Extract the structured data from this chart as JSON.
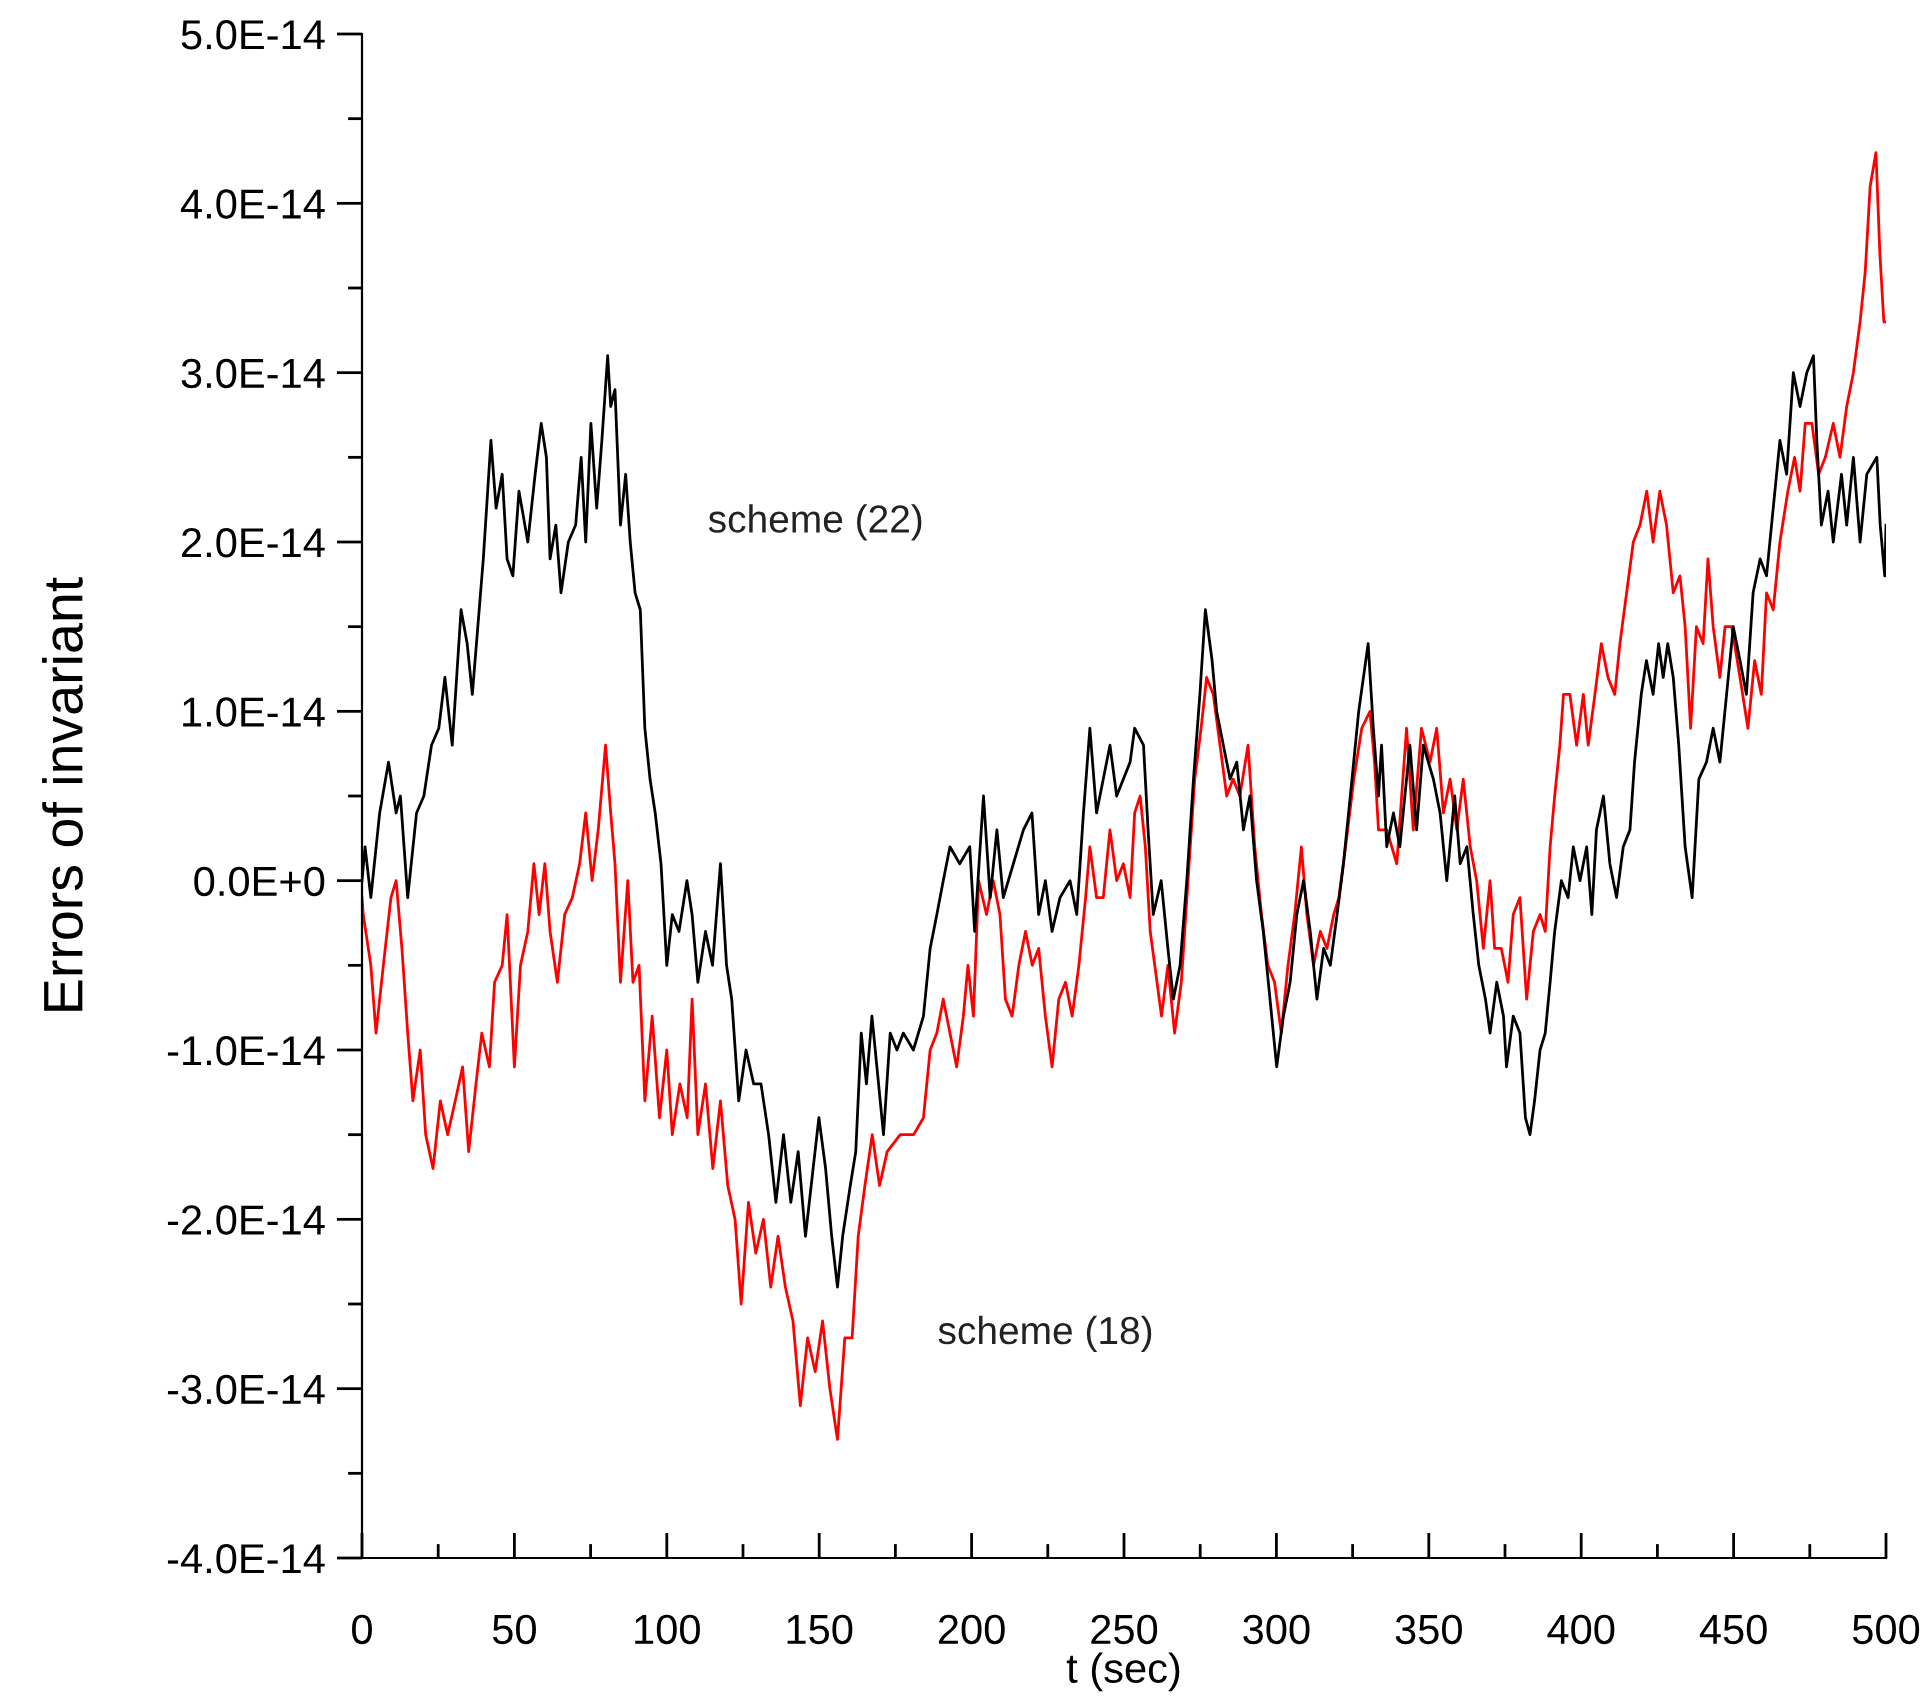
{
  "chart_data": {
    "type": "line",
    "xlabel": "t (sec)",
    "ylabel": "Errors of invariant",
    "xlim": [
      0,
      500
    ],
    "ylim": [
      -4e-14,
      5e-14
    ],
    "xticks": [
      0,
      {
        "value": 25,
        "label": null
      },
      50,
      {
        "value": 75,
        "label": null
      },
      100,
      {
        "value": 125,
        "label": null
      },
      150,
      {
        "value": 175,
        "label": null
      },
      200,
      {
        "value": 225,
        "label": null
      },
      250,
      {
        "value": 275,
        "label": null
      },
      300,
      {
        "value": 325,
        "label": null
      },
      350,
      {
        "value": 375,
        "label": null
      },
      400,
      {
        "value": 425,
        "label": null
      },
      450,
      {
        "value": 475,
        "label": null
      },
      500
    ],
    "yticks": [
      {
        "value": -4e-14,
        "label": "-4.0E-14"
      },
      {
        "value": -3.5e-14,
        "label": null
      },
      {
        "value": -3e-14,
        "label": "-3.0E-14"
      },
      {
        "value": -2.5e-14,
        "label": null
      },
      {
        "value": -2e-14,
        "label": "-2.0E-14"
      },
      {
        "value": -1.5e-14,
        "label": null
      },
      {
        "value": -1e-14,
        "label": "-1.0E-14"
      },
      {
        "value": -5e-15,
        "label": null
      },
      {
        "value": 0,
        "label": "0.0E+0"
      },
      {
        "value": 5e-15,
        "label": null
      },
      {
        "value": 1e-14,
        "label": "1.0E-14"
      },
      {
        "value": 1.5e-14,
        "label": null
      },
      {
        "value": 2e-14,
        "label": "2.0E-14"
      },
      {
        "value": 2.5e-14,
        "label": null
      },
      {
        "value": 3e-14,
        "label": "3.0E-14"
      },
      {
        "value": 3.5e-14,
        "label": null
      },
      {
        "value": 4e-14,
        "label": "4.0E-14"
      },
      {
        "value": 4.5e-14,
        "label": null
      },
      {
        "value": 5e-14,
        "label": "5.0E-14"
      }
    ],
    "series": [
      {
        "name": "scheme (18)",
        "color": "#ff0000",
        "x": [
          0,
          0.4,
          2.9,
          4.6,
          7,
          9.5,
          11.2,
          13.1,
          15,
          16.7,
          19.1,
          20.9,
          23.3,
          25.7,
          28.1,
          30.6,
          33,
          35,
          37.4,
          39.3,
          41.8,
          43.5,
          46,
          47.6,
          50,
          52,
          54.4,
          56.4,
          58.1,
          60,
          61.7,
          64.1,
          66.5,
          69,
          71.4,
          73.4,
          75.5,
          77.5,
          79.9,
          81.6,
          83,
          84.8,
          87.2,
          88.9,
          90.9,
          92.8,
          95.2,
          97.6,
          100,
          101.8,
          104.3,
          106.7,
          108.3,
          110.2,
          112.7,
          115.1,
          117.6,
          120,
          122.4,
          124.4,
          126.8,
          129.2,
          131.7,
          134.1,
          136.5,
          138.9,
          141.4,
          143.8,
          146.2,
          148.7,
          151.1,
          153.5,
          156,
          158.4,
          160.8,
          162.8,
          165,
          167.4,
          169.8,
          172.3,
          176.6,
          181,
          184.2,
          186.4,
          188.6,
          190.7,
          192.9,
          195.1,
          197.3,
          198.8,
          200.6,
          202.3,
          204.9,
          207.1,
          209.3,
          211.1,
          213.3,
          215.5,
          217.7,
          219.9,
          222,
          224.2,
          226.4,
          228.6,
          230.8,
          233,
          235.2,
          237.4,
          238.8,
          241,
          243.2,
          245.4,
          247.6,
          249.8,
          252,
          253.5,
          255.3,
          257,
          258.6,
          260.1,
          262.3,
          264.4,
          266.6,
          268.8,
          271,
          273.2,
          275.3,
          277.1,
          279.3,
          281.5,
          283.7,
          285.8,
          288,
          290.7,
          292.9,
          295.1,
          297.2,
          299.4,
          301.6,
          303.8,
          306,
          308.2,
          310,
          312.2,
          314.4,
          316.6,
          318.8,
          320.5,
          322.7,
          325.4,
          328,
          330.7,
          332.2,
          333.5,
          336.2,
          339.5,
          342.7,
          344.9,
          347.6,
          350.4,
          352.6,
          354.8,
          357,
          359.2,
          361.3,
          363.6,
          365.7,
          367.9,
          370.1,
          371.6,
          373.8,
          376,
          377.7,
          379.9,
          382.1,
          384.3,
          386.5,
          388.2,
          389.8,
          391.3,
          393,
          394.2,
          396.3,
          398.5,
          400.7,
          402.3,
          404.5,
          406.6,
          408.8,
          411,
          412.7,
          414.9,
          417.1,
          419.3,
          421.5,
          423.6,
          425.8,
          428,
          430.2,
          432.4,
          434.1,
          435.9,
          437.8,
          440,
          441.6,
          443.3,
          445.5,
          447.2,
          449.4,
          452.1,
          454.7,
          456.9,
          459.1,
          460.8,
          463,
          465.2,
          467.8,
          470,
          471.8,
          473.5,
          475.7,
          477.9,
          480.1,
          482.7,
          484.9,
          487.1,
          489.3,
          491.5,
          493.2,
          494.8,
          496.7,
          498,
          499.3,
          500
        ],
        "values": [
          -1e-15,
          -2e-15,
          -5e-15,
          -9e-15,
          -5e-15,
          -1e-15,
          0,
          -4e-15,
          -9e-15,
          -1.3e-14,
          -1e-14,
          -1.5e-14,
          -1.7e-14,
          -1.3e-14,
          -1.5e-14,
          -1.3e-14,
          -1.1e-14,
          -1.6e-14,
          -1.2e-14,
          -9e-15,
          -1.1e-14,
          -6e-15,
          -5e-15,
          -2e-15,
          -1.1e-14,
          -5e-15,
          -3e-15,
          1e-15,
          -2e-15,
          1e-15,
          -3e-15,
          -6e-15,
          -2e-15,
          -1e-15,
          1e-15,
          4e-15,
          0,
          3e-15,
          8e-15,
          4e-15,
          1e-15,
          -6e-15,
          0,
          -6e-15,
          -5e-15,
          -1.3e-14,
          -8e-15,
          -1.4e-14,
          -1e-14,
          -1.5e-14,
          -1.2e-14,
          -1.4e-14,
          -7e-15,
          -1.5e-14,
          -1.2e-14,
          -1.7e-14,
          -1.3e-14,
          -1.8e-14,
          -2e-14,
          -2.5e-14,
          -1.9e-14,
          -2.2e-14,
          -2e-14,
          -2.4e-14,
          -2.1e-14,
          -2.4e-14,
          -2.6e-14,
          -3.1e-14,
          -2.7e-14,
          -2.9e-14,
          -2.6e-14,
          -3e-14,
          -3.3e-14,
          -2.7e-14,
          -2.7e-14,
          -2.1e-14,
          -1.8e-14,
          -1.5e-14,
          -1.8e-14,
          -1.6e-14,
          -1.5e-14,
          -1.5e-14,
          -1.4e-14,
          -1e-14,
          -9e-15,
          -7e-15,
          -9e-15,
          -1.1e-14,
          -8e-15,
          -5e-15,
          -8e-15,
          0,
          -2e-15,
          0,
          -2e-15,
          -7e-15,
          -8e-15,
          -5e-15,
          -3e-15,
          -5e-15,
          -4e-15,
          -8e-15,
          -1.1e-14,
          -7e-15,
          -6e-15,
          -8e-15,
          -5e-15,
          -1e-15,
          2e-15,
          -1e-15,
          -1e-15,
          3e-15,
          0,
          1e-15,
          -1e-15,
          4e-15,
          5e-15,
          2e-15,
          -3e-15,
          -5e-15,
          -8e-15,
          -5e-15,
          -9e-15,
          -6e-15,
          0,
          6e-15,
          9e-15,
          1.2e-14,
          1.1e-14,
          8e-15,
          5e-15,
          6e-15,
          5e-15,
          8e-15,
          2e-15,
          -2e-15,
          -5e-15,
          -6e-15,
          -9e-15,
          -5e-15,
          -2e-15,
          2e-15,
          -2e-15,
          -5e-15,
          -3e-15,
          -4e-15,
          -2e-15,
          -1e-15,
          2e-15,
          6e-15,
          9e-15,
          1e-14,
          7e-15,
          3e-15,
          3e-15,
          1e-15,
          9e-15,
          3e-15,
          9e-15,
          7e-15,
          9e-15,
          4e-15,
          6e-15,
          3e-15,
          6e-15,
          2e-15,
          0,
          -4e-15,
          0,
          -4e-15,
          -4e-15,
          -6e-15,
          -2e-15,
          -1e-15,
          -7e-15,
          -3e-15,
          -2e-15,
          -3e-15,
          2e-15,
          5e-15,
          8e-15,
          1.1e-14,
          1.1e-14,
          8e-15,
          1.1e-14,
          8e-15,
          1.1e-14,
          1.4e-14,
          1.2e-14,
          1.1e-14,
          1.4e-14,
          1.7e-14,
          2e-14,
          2.1e-14,
          2.3e-14,
          2e-14,
          2.3e-14,
          2.1e-14,
          1.7e-14,
          1.8e-14,
          1.5e-14,
          9e-15,
          1.5e-14,
          1.4e-14,
          1.9e-14,
          1.5e-14,
          1.2e-14,
          1.5e-14,
          1.5e-14,
          1.2e-14,
          9e-15,
          1.3e-14,
          1.1e-14,
          1.7e-14,
          1.6e-14,
          2e-14,
          2.3e-14,
          2.5e-14,
          2.3e-14,
          2.7e-14,
          2.7e-14,
          2.4e-14,
          2.5e-14,
          2.7e-14,
          2.5e-14,
          2.8e-14,
          3e-14,
          3.3e-14,
          3.6e-14,
          4.1e-14,
          4.3e-14,
          3.7e-14,
          3.3e-14,
          3.3e-14
        ]
      },
      {
        "name": "scheme (22)",
        "color": "#000000",
        "x": [
          0,
          1,
          2.9,
          5.8,
          8.7,
          11.2,
          12.6,
          15,
          17.9,
          20.3,
          22.8,
          25.2,
          27.2,
          29.6,
          32.5,
          34.5,
          36.2,
          39.8,
          42.3,
          44,
          46,
          47.6,
          49.5,
          51.5,
          54.4,
          56.8,
          58.8,
          60.5,
          61.7,
          63.6,
          65.3,
          67.7,
          70.1,
          71.9,
          73.4,
          75.1,
          77,
          78.7,
          80.6,
          81.6,
          83,
          84.8,
          86.5,
          88,
          89.6,
          91.3,
          92.8,
          94.5,
          96.2,
          98.1,
          100,
          101.8,
          104,
          106.6,
          108.3,
          110.2,
          112.7,
          115,
          117.6,
          119.6,
          121.3,
          123.6,
          126,
          128.5,
          130.9,
          133.4,
          135.8,
          138.3,
          140.7,
          143.1,
          145.5,
          148,
          149.9,
          152.1,
          154.1,
          156,
          157.7,
          160.2,
          162,
          163.8,
          165.5,
          167.3,
          171.1,
          173.3,
          175.5,
          177.6,
          180.9,
          184.2,
          186.4,
          188.6,
          190.7,
          192.9,
          196.1,
          199.4,
          201,
          203.9,
          206.1,
          208.3,
          210.4,
          213.7,
          217,
          219.8,
          222,
          224.2,
          226.4,
          229,
          232.3,
          234.5,
          236.7,
          238.8,
          241,
          243.2,
          245.4,
          247.6,
          249.8,
          252,
          253.5,
          256.4,
          257.9,
          259.6,
          262.2,
          264.4,
          266.2,
          268.4,
          270.6,
          272.8,
          274.9,
          276.7,
          278.9,
          280.4,
          282.6,
          284.8,
          287,
          289.2,
          291.3,
          293.5,
          295.7,
          297.9,
          300.1,
          302.3,
          304.5,
          306.7,
          308.9,
          311.1,
          313.3,
          315.5,
          317.7,
          319.9,
          322,
          324.8,
          327,
          330.1,
          331.8,
          333.5,
          334.5,
          336.2,
          338.4,
          340.5,
          343.8,
          346,
          348.2,
          351.5,
          353.7,
          355.9,
          358.5,
          360.3,
          362.5,
          364.6,
          366.4,
          368.6,
          370.1,
          372.3,
          374.5,
          375.5,
          377.7,
          379.9,
          381.7,
          383.2,
          384.7,
          386.5,
          388.2,
          389.8,
          391.3,
          393.5,
          395.7,
          397.4,
          399.6,
          401.8,
          403.5,
          405,
          407.3,
          409.4,
          411.6,
          413.8,
          416,
          417.5,
          419.7,
          421.4,
          423.6,
          425.4,
          426.9,
          428.4,
          430.2,
          432,
          434.1,
          436.4,
          438.6,
          441.1,
          443.3,
          445.5,
          447.7,
          449.9,
          452.1,
          454.2,
          456.4,
          458.7,
          460.8,
          463,
          465.2,
          467.4,
          469.6,
          471.8,
          474,
          476.2,
          477.3,
          478.8,
          481,
          482.7,
          485.4,
          487.1,
          489.3,
          491.5,
          493.7,
          497,
          498.1,
          499.6,
          500
        ],
        "values": [
          0,
          2e-15,
          -1e-15,
          4e-15,
          7e-15,
          4e-15,
          5e-15,
          -1e-15,
          4e-15,
          5e-15,
          8e-15,
          9e-15,
          1.2e-14,
          8e-15,
          1.6e-14,
          1.4e-14,
          1.1e-14,
          1.9e-14,
          2.6e-14,
          2.2e-14,
          2.4e-14,
          1.9e-14,
          1.8e-14,
          2.3e-14,
          2e-14,
          2.4e-14,
          2.7e-14,
          2.5e-14,
          1.9e-14,
          2.1e-14,
          1.7e-14,
          2e-14,
          2.1e-14,
          2.5e-14,
          2e-14,
          2.7e-14,
          2.2e-14,
          2.6e-14,
          3.1e-14,
          2.8e-14,
          2.9e-14,
          2.1e-14,
          2.4e-14,
          2e-14,
          1.7e-14,
          1.6e-14,
          9e-15,
          6e-15,
          4e-15,
          1e-15,
          -5e-15,
          -2e-15,
          -3e-15,
          0,
          -2e-15,
          -6e-15,
          -3e-15,
          -5e-15,
          1e-15,
          -5e-15,
          -7e-15,
          -1.3e-14,
          -1e-14,
          -1.2e-14,
          -1.2e-14,
          -1.5e-14,
          -1.9e-14,
          -1.5e-14,
          -1.9e-14,
          -1.6e-14,
          -2.1e-14,
          -1.7e-14,
          -1.4e-14,
          -1.7e-14,
          -2.1e-14,
          -2.4e-14,
          -2.1e-14,
          -1.8e-14,
          -1.6e-14,
          -9e-15,
          -1.2e-14,
          -8e-15,
          -1.5e-14,
          -9e-15,
          -1e-14,
          -9e-15,
          -1e-14,
          -8e-15,
          -4e-15,
          -2e-15,
          0,
          2e-15,
          1e-15,
          2e-15,
          -3e-15,
          5e-15,
          -1e-15,
          3e-15,
          -1e-15,
          1e-15,
          3e-15,
          4e-15,
          -2e-15,
          0,
          -3e-15,
          -1e-15,
          0,
          -2e-15,
          4e-15,
          9e-15,
          4e-15,
          6e-15,
          8e-15,
          5e-15,
          6e-15,
          7e-15,
          9e-15,
          8e-15,
          3e-15,
          -2e-15,
          0,
          -4e-15,
          -7e-15,
          -5e-15,
          0,
          6e-15,
          1.1e-14,
          1.6e-14,
          1.3e-14,
          1e-14,
          8e-15,
          6e-15,
          7e-15,
          3e-15,
          5e-15,
          0,
          -3e-15,
          -7e-15,
          -1.1e-14,
          -8e-15,
          -6e-15,
          -2e-15,
          0,
          -3e-15,
          -7e-15,
          -4e-15,
          -5e-15,
          -2e-15,
          1e-15,
          6e-15,
          1e-14,
          1.4e-14,
          9e-15,
          5e-15,
          8e-15,
          2e-15,
          4e-15,
          2e-15,
          8e-15,
          3e-15,
          8e-15,
          6e-15,
          4e-15,
          0,
          5e-15,
          1e-15,
          2e-15,
          -2e-15,
          -5e-15,
          -7e-15,
          -9e-15,
          -6e-15,
          -8e-15,
          -1.1e-14,
          -8e-15,
          -9e-15,
          -1.4e-14,
          -1.5e-14,
          -1.3e-14,
          -1e-14,
          -9e-15,
          -6e-15,
          -3e-15,
          0,
          -1e-15,
          2e-15,
          0,
          2e-15,
          -2e-15,
          3e-15,
          5e-15,
          1e-15,
          -1e-15,
          2e-15,
          3e-15,
          7e-15,
          1.1e-14,
          1.3e-14,
          1.1e-14,
          1.4e-14,
          1.2e-14,
          1.4e-14,
          1.2e-14,
          8e-15,
          2e-15,
          -1e-15,
          6e-15,
          7e-15,
          9e-15,
          7e-15,
          1.1e-14,
          1.5e-14,
          1.3e-14,
          1.1e-14,
          1.7e-14,
          1.9e-14,
          1.8e-14,
          2.2e-14,
          2.6e-14,
          2.4e-14,
          3e-14,
          2.8e-14,
          3e-14,
          3.1e-14,
          2.6e-14,
          2.1e-14,
          2.3e-14,
          2e-14,
          2.4e-14,
          2.1e-14,
          2.5e-14,
          2e-14,
          2.4e-14,
          2.5e-14,
          2.1e-14,
          1.8e-14,
          2.1e-14
        ]
      }
    ]
  }
}
